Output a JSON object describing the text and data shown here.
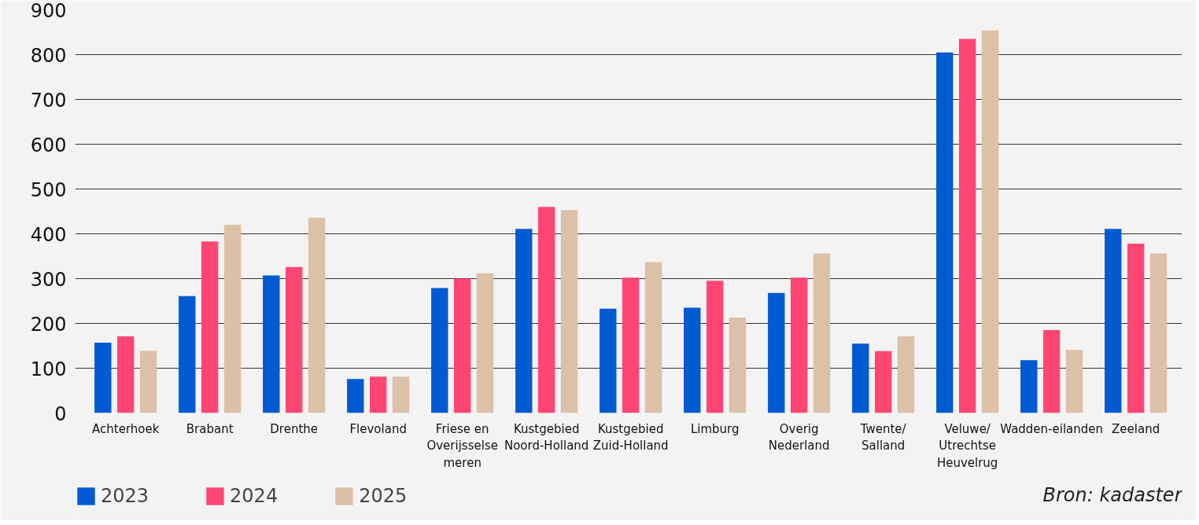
{
  "chart_data": {
    "type": "bar",
    "categories": [
      "Achterhoek",
      "Brabant",
      "Drenthe",
      "Flevoland",
      "Friese en Overijsselse meren",
      "Kustgebied Noord-Holland",
      "Kustgebied Zuid-Holland",
      "Limburg",
      "Overig Nederland",
      "Twente/ Salland",
      "Veluwe/ Utrechtse Heuvelrug",
      "Wadden-eilanden",
      "Zeeland"
    ],
    "series": [
      {
        "name": "2023",
        "color": "#005ad2",
        "values": [
          157,
          261,
          307,
          76,
          279,
          411,
          233,
          235,
          268,
          155,
          805,
          118,
          411
        ]
      },
      {
        "name": "2024",
        "color": "#ff4673",
        "values": [
          171,
          383,
          326,
          81,
          300,
          460,
          302,
          295,
          302,
          138,
          835,
          185,
          378
        ]
      },
      {
        "name": "2025",
        "color": "#dcc0a8",
        "values": [
          139,
          420,
          436,
          81,
          312,
          453,
          337,
          213,
          356,
          171,
          854,
          141,
          356
        ]
      }
    ],
    "ylim": [
      0,
      900
    ],
    "yticks": [
      0,
      100,
      200,
      300,
      400,
      500,
      600,
      700,
      800,
      900
    ],
    "grid": "y",
    "legend": "bottom left",
    "annotations": [
      "Bron: kadaster"
    ]
  }
}
